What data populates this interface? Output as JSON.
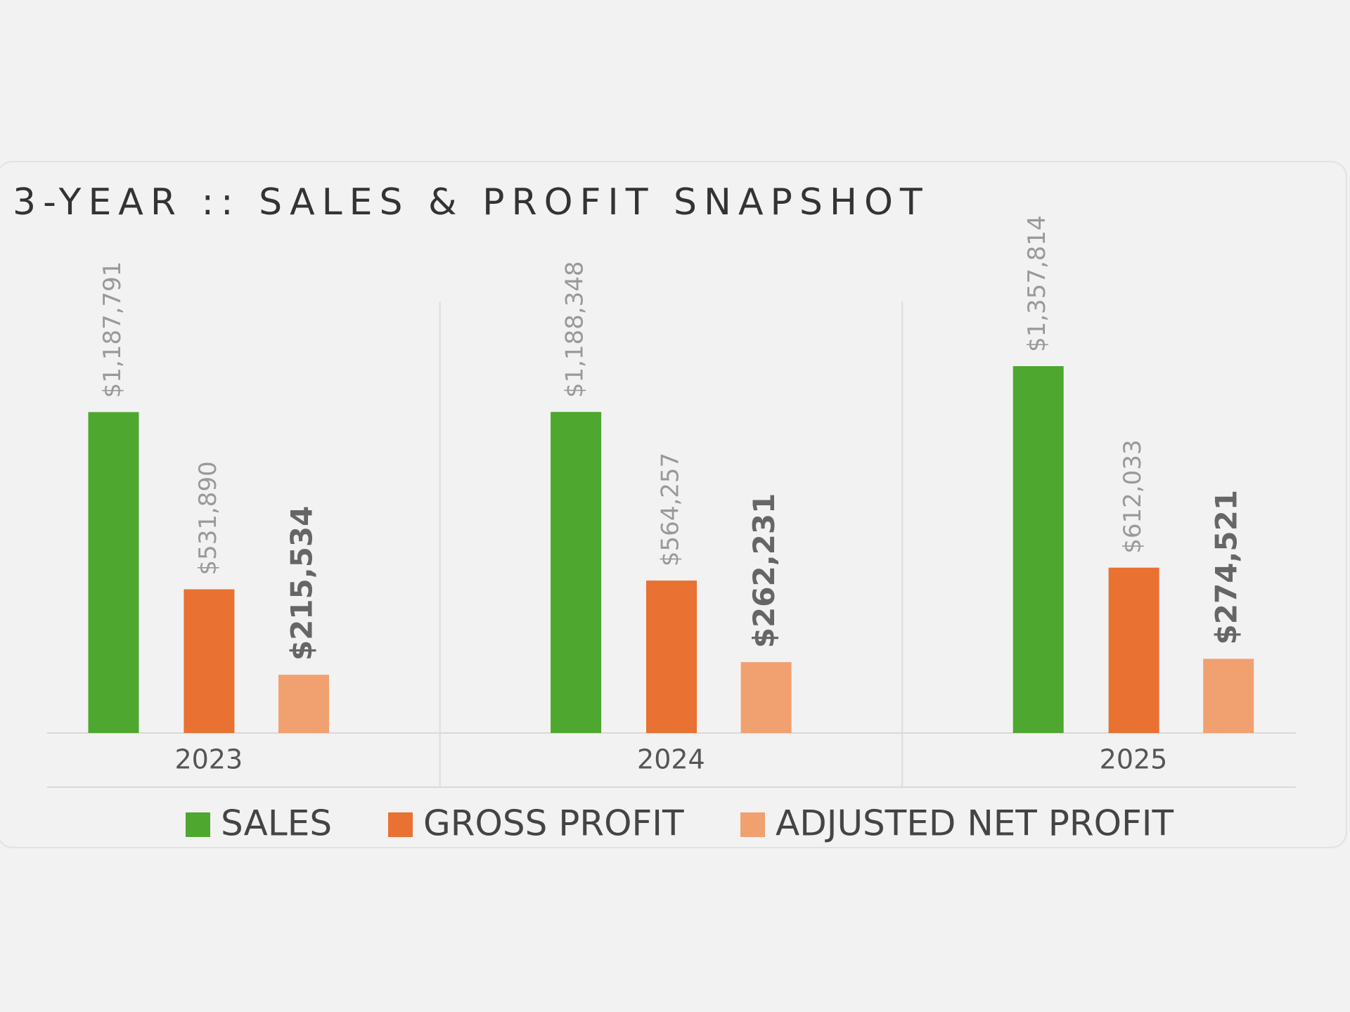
{
  "chart_data": {
    "type": "bar",
    "title": "3-YEAR :: SALES & PROFIT SNAPSHOT",
    "categories": [
      "2023",
      "2024",
      "2025"
    ],
    "series": [
      {
        "name": "SALES",
        "color": "#4ea72e",
        "values": [
          1187791,
          1188348,
          1357814
        ],
        "value_labels": [
          "$1,187,791",
          "$1,188,348",
          "$1,357,814"
        ]
      },
      {
        "name": "GROSS PROFIT",
        "color": "#e97132",
        "values": [
          531890,
          564257,
          612033
        ],
        "value_labels": [
          "$531,890",
          "$564,257",
          "$612,033"
        ]
      },
      {
        "name": "ADJUSTED NET PROFIT",
        "color": "#f1a070",
        "values": [
          215534,
          262231,
          274521
        ],
        "value_labels": [
          "$215,534",
          "$262,231",
          "$274,521"
        ]
      }
    ],
    "legend": "bottom"
  }
}
